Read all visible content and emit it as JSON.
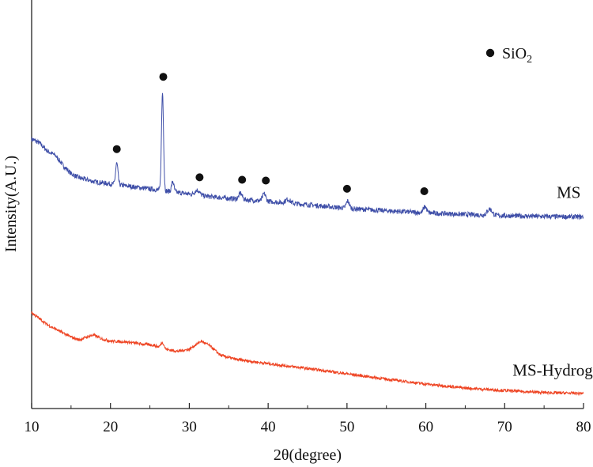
{
  "chart_data": {
    "type": "line",
    "title": "",
    "xlabel": "2θ(degree)",
    "ylabel": "Intensity(A.U.)",
    "xlim": [
      10,
      80
    ],
    "ylim": [
      0,
      100
    ],
    "x_ticks": [
      10,
      20,
      30,
      40,
      50,
      60,
      70,
      80
    ],
    "x_tick_labels": [
      "10",
      "20",
      "30",
      "40",
      "50",
      "60",
      "70",
      "80"
    ],
    "y_ticks_shown": false,
    "legend": {
      "marker": "filled-circle",
      "label_main": "SiO",
      "label_sub": "2",
      "placement": "top-right"
    },
    "series": [
      {
        "name": "MS",
        "color": "#3f4fa8",
        "baseline": [
          [
            10,
            66
          ],
          [
            11,
            65
          ],
          [
            12,
            63
          ],
          [
            13,
            62
          ],
          [
            14,
            59.5
          ],
          [
            15,
            57.5
          ],
          [
            16,
            56.5
          ],
          [
            17,
            56
          ],
          [
            18,
            55.5
          ],
          [
            20,
            55
          ],
          [
            22,
            54.5
          ],
          [
            24,
            54
          ],
          [
            26,
            53.5
          ],
          [
            28,
            53
          ],
          [
            30,
            52.5
          ],
          [
            32,
            52
          ],
          [
            34,
            51.6
          ],
          [
            36,
            51.3
          ],
          [
            38,
            51
          ],
          [
            40,
            50.7
          ],
          [
            45,
            49.9
          ],
          [
            50,
            49
          ],
          [
            55,
            48.4
          ],
          [
            60,
            47.9
          ],
          [
            65,
            47.5
          ],
          [
            70,
            47.2
          ],
          [
            75,
            47
          ],
          [
            80,
            46.9
          ]
        ],
        "peaks": [
          [
            20.8,
            5.2,
            0.15
          ],
          [
            26.6,
            24,
            0.13
          ],
          [
            27.9,
            2.5,
            0.15
          ],
          [
            31.0,
            1.2,
            0.3
          ],
          [
            36.5,
            1.5,
            0.2
          ],
          [
            39.5,
            1.8,
            0.2
          ],
          [
            42.5,
            0.9,
            0.3
          ],
          [
            50.1,
            1.8,
            0.2
          ],
          [
            59.9,
            1.5,
            0.2
          ],
          [
            68.1,
            1.5,
            0.3
          ]
        ],
        "noise": 0.6
      },
      {
        "name": "MS-Hydrogel",
        "color": "#ee4423",
        "baseline": [
          [
            10,
            23.5
          ],
          [
            11,
            22
          ],
          [
            12,
            20.5
          ],
          [
            13,
            19.5
          ],
          [
            14,
            18.5
          ],
          [
            15,
            17.5
          ],
          [
            16,
            16.8
          ],
          [
            17,
            17.5
          ],
          [
            17.8,
            18
          ],
          [
            19,
            17
          ],
          [
            20,
            16.5
          ],
          [
            22,
            16.3
          ],
          [
            24,
            15.8
          ],
          [
            25.5,
            15.5
          ],
          [
            27,
            14.5
          ],
          [
            28.5,
            14
          ],
          [
            30,
            14.5
          ],
          [
            31.5,
            16.5
          ],
          [
            32.5,
            15.5
          ],
          [
            34,
            13
          ],
          [
            36,
            12
          ],
          [
            40,
            11
          ],
          [
            45,
            9.8
          ],
          [
            50,
            8.5
          ],
          [
            55,
            7.2
          ],
          [
            60,
            6
          ],
          [
            65,
            5
          ],
          [
            70,
            4.4
          ],
          [
            75,
            3.9
          ],
          [
            80,
            3.7
          ]
        ],
        "peaks": [
          [
            26.6,
            1.4,
            0.2
          ]
        ],
        "noise": 0.35
      }
    ],
    "sio2_markers": [
      {
        "x": 20.8,
        "y": 63.5
      },
      {
        "x": 26.7,
        "y": 81.2
      },
      {
        "x": 31.3,
        "y": 56.6
      },
      {
        "x": 36.7,
        "y": 56.0
      },
      {
        "x": 39.7,
        "y": 55.8
      },
      {
        "x": 50.0,
        "y": 53.8
      },
      {
        "x": 59.8,
        "y": 53.2
      }
    ],
    "series_labels": [
      {
        "text": "MS",
        "x": 76.6,
        "y": 51.5
      },
      {
        "text": "MS-Hydrogel",
        "x": 71.0,
        "y": 8.0
      }
    ]
  }
}
